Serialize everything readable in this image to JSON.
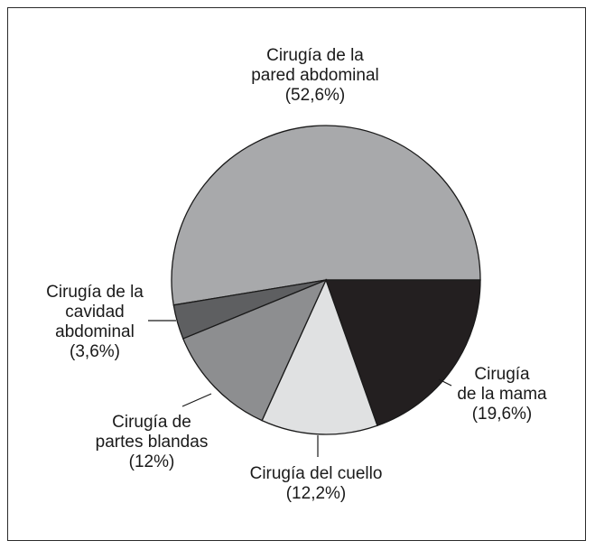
{
  "chart_data": {
    "type": "pie",
    "title": "",
    "slices": [
      {
        "label": [
          "Cirugía de la",
          "pared abdominal",
          "(52,6%)"
        ],
        "value": 52.6,
        "color": "#a8a9ab"
      },
      {
        "label": [
          "Cirugía",
          "de la mama",
          "(19,6%)"
        ],
        "value": 19.6,
        "color": "#231f20"
      },
      {
        "label": [
          "Cirugía del cuello",
          "(12,2%)"
        ],
        "value": 12.2,
        "color": "#e0e1e2"
      },
      {
        "label": [
          "Cirugía de",
          "partes blandas",
          "(12%)"
        ],
        "value": 12.0,
        "color": "#8d8e90"
      },
      {
        "label": [
          "Cirugía de la",
          "cavidad",
          "abdominal",
          "(3,6%)"
        ],
        "value": 3.6,
        "color": "#5e5f61"
      }
    ]
  }
}
